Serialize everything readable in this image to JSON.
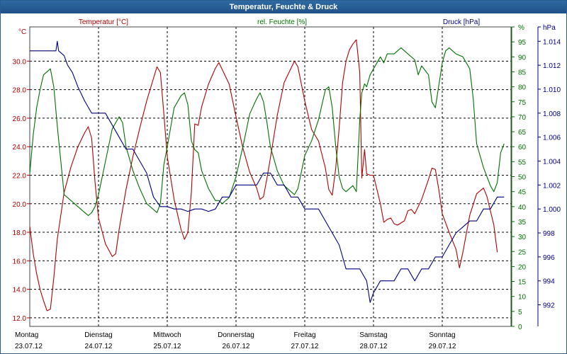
{
  "window": {
    "title": "Temperatur, Feuchte & Druck"
  },
  "chart_data": {
    "type": "line",
    "title": "Temperatur, Feuchte & Druck",
    "grid": true,
    "x_labels": [
      {
        "day": "Montag",
        "date": "23.07.12"
      },
      {
        "day": "Dienstag",
        "date": "24.07.12"
      },
      {
        "day": "Mittwoch",
        "date": "25.07.12"
      },
      {
        "day": "Donnerstag",
        "date": "26.07.12"
      },
      {
        "day": "Freitag",
        "date": "27.07.12"
      },
      {
        "day": "Samstag",
        "date": "28.07.12"
      },
      {
        "day": "Sonntag",
        "date": "29.07.12"
      }
    ],
    "xlim": [
      0,
      7
    ],
    "axes": {
      "temperature": {
        "unit": "°C",
        "ylim": [
          11.4,
          32.4
        ],
        "ticks": [
          "12.0",
          "14.0",
          "16.0",
          "18.0",
          "20.0",
          "22.0",
          "24.0",
          "26.0",
          "28.0",
          "30.0"
        ],
        "tick_values": [
          12,
          14,
          16,
          18,
          20,
          22,
          24,
          26,
          28,
          30
        ],
        "color": "#b00000"
      },
      "humidity": {
        "unit": "%",
        "ylim": [
          0,
          100
        ],
        "ticks": [
          "0",
          "5",
          "10",
          "15",
          "20",
          "25",
          "30",
          "35",
          "40",
          "45",
          "50",
          "55",
          "60",
          "65",
          "70",
          "75",
          "80",
          "85",
          "90",
          "95",
          "%"
        ],
        "tick_values": [
          0,
          5,
          10,
          15,
          20,
          25,
          30,
          35,
          40,
          45,
          50,
          55,
          60,
          65,
          70,
          75,
          80,
          85,
          90,
          95,
          100
        ],
        "color": "#007000"
      },
      "pressure": {
        "unit": "hPa",
        "ylim": [
          990.2,
          1015.2
        ],
        "ticks": [
          "992",
          "994",
          "996",
          "998",
          "1.000",
          "1.002",
          "1.004",
          "1.006",
          "1.008",
          "1.010",
          "1.012",
          "1.014",
          "hPa"
        ],
        "tick_values": [
          992,
          994,
          996,
          998,
          1000,
          1002,
          1004,
          1006,
          1008,
          1010,
          1012,
          1014,
          1015.2
        ],
        "color": "#000080"
      }
    },
    "legend": {
      "temperature": "Temperatur [°C]",
      "humidity": "rel. Feuchte [%]",
      "pressure": "Druck [hPa]"
    },
    "series": [
      {
        "name": "Temperatur [°C]",
        "axis": "temperature",
        "color": "#b00000",
        "points": [
          [
            0.0,
            18.4
          ],
          [
            0.05,
            16.5
          ],
          [
            0.1,
            15.1
          ],
          [
            0.15,
            14.0
          ],
          [
            0.2,
            13.2
          ],
          [
            0.25,
            12.5
          ],
          [
            0.3,
            12.6
          ],
          [
            0.35,
            14.8
          ],
          [
            0.4,
            17.5
          ],
          [
            0.5,
            20.8
          ],
          [
            0.6,
            22.6
          ],
          [
            0.7,
            24.0
          ],
          [
            0.8,
            25.0
          ],
          [
            0.85,
            25.4
          ],
          [
            0.9,
            24.6
          ],
          [
            0.95,
            21.5
          ],
          [
            1.0,
            19.0
          ],
          [
            1.1,
            17.2
          ],
          [
            1.2,
            16.3
          ],
          [
            1.25,
            16.5
          ],
          [
            1.3,
            18.2
          ],
          [
            1.4,
            21.0
          ],
          [
            1.5,
            23.3
          ],
          [
            1.6,
            25.3
          ],
          [
            1.7,
            27.2
          ],
          [
            1.8,
            28.8
          ],
          [
            1.85,
            29.6
          ],
          [
            1.9,
            29.2
          ],
          [
            1.95,
            26.3
          ],
          [
            2.0,
            23.3
          ],
          [
            2.1,
            20.3
          ],
          [
            2.2,
            18.2
          ],
          [
            2.25,
            17.5
          ],
          [
            2.3,
            18.0
          ],
          [
            2.35,
            20.8
          ],
          [
            2.4,
            25.6
          ],
          [
            2.45,
            25.5
          ],
          [
            2.5,
            26.8
          ],
          [
            2.6,
            28.4
          ],
          [
            2.7,
            29.5
          ],
          [
            2.75,
            29.9
          ],
          [
            2.8,
            29.4
          ],
          [
            2.9,
            28.4
          ],
          [
            3.0,
            26.1
          ],
          [
            3.1,
            23.9
          ],
          [
            3.2,
            22.2
          ],
          [
            3.3,
            21.1
          ],
          [
            3.35,
            20.3
          ],
          [
            3.4,
            20.5
          ],
          [
            3.45,
            21.8
          ],
          [
            3.5,
            23.2
          ],
          [
            3.6,
            26.2
          ],
          [
            3.7,
            28.5
          ],
          [
            3.8,
            29.5
          ],
          [
            3.85,
            30.0
          ],
          [
            3.9,
            29.6
          ],
          [
            4.0,
            27.2
          ],
          [
            4.1,
            25.2
          ],
          [
            4.2,
            24.4
          ],
          [
            4.3,
            22.5
          ],
          [
            4.35,
            21.0
          ],
          [
            4.4,
            20.6
          ],
          [
            4.45,
            22.5
          ],
          [
            4.5,
            25.3
          ],
          [
            4.55,
            28.5
          ],
          [
            4.6,
            30.0
          ],
          [
            4.65,
            30.8
          ],
          [
            4.7,
            31.2
          ],
          [
            4.75,
            31.5
          ],
          [
            4.8,
            29.2
          ],
          [
            4.83,
            21.8
          ],
          [
            4.87,
            23.8
          ],
          [
            4.9,
            22.1
          ],
          [
            4.95,
            22.0
          ],
          [
            5.0,
            22.0
          ],
          [
            5.1,
            20.0
          ],
          [
            5.15,
            18.7
          ],
          [
            5.2,
            18.9
          ],
          [
            5.25,
            19.0
          ],
          [
            5.3,
            18.6
          ],
          [
            5.35,
            18.5
          ],
          [
            5.45,
            18.8
          ],
          [
            5.5,
            19.5
          ],
          [
            5.55,
            19.6
          ],
          [
            5.6,
            19.3
          ],
          [
            5.7,
            20.3
          ],
          [
            5.8,
            21.7
          ],
          [
            5.85,
            22.5
          ],
          [
            5.9,
            22.4
          ],
          [
            5.95,
            21.0
          ],
          [
            6.0,
            19.3
          ],
          [
            6.1,
            18.0
          ],
          [
            6.2,
            16.8
          ],
          [
            6.25,
            15.5
          ],
          [
            6.3,
            16.6
          ],
          [
            6.4,
            19.2
          ],
          [
            6.5,
            20.7
          ],
          [
            6.6,
            21.1
          ],
          [
            6.65,
            20.5
          ],
          [
            6.7,
            19.5
          ],
          [
            6.75,
            18.5
          ],
          [
            6.8,
            16.6
          ]
        ]
      },
      {
        "name": "rel. Feuchte [%]",
        "axis": "humidity",
        "color": "#007000",
        "points": [
          [
            0.0,
            51
          ],
          [
            0.05,
            64
          ],
          [
            0.1,
            73
          ],
          [
            0.15,
            79
          ],
          [
            0.2,
            84
          ],
          [
            0.25,
            85
          ],
          [
            0.3,
            86
          ],
          [
            0.35,
            80
          ],
          [
            0.4,
            67
          ],
          [
            0.5,
            44
          ],
          [
            0.6,
            42
          ],
          [
            0.7,
            40
          ],
          [
            0.8,
            38
          ],
          [
            0.85,
            37
          ],
          [
            0.9,
            38
          ],
          [
            0.95,
            40
          ],
          [
            1.0,
            44
          ],
          [
            1.1,
            55
          ],
          [
            1.2,
            66
          ],
          [
            1.3,
            70
          ],
          [
            1.35,
            68
          ],
          [
            1.4,
            60
          ],
          [
            1.5,
            52
          ],
          [
            1.6,
            46
          ],
          [
            1.7,
            41
          ],
          [
            1.8,
            39
          ],
          [
            1.85,
            38
          ],
          [
            1.9,
            41
          ],
          [
            1.95,
            54
          ],
          [
            2.0,
            60
          ],
          [
            2.1,
            73
          ],
          [
            2.2,
            77
          ],
          [
            2.25,
            78
          ],
          [
            2.3,
            74
          ],
          [
            2.35,
            62
          ],
          [
            2.4,
            59
          ],
          [
            2.45,
            58
          ],
          [
            2.5,
            52
          ],
          [
            2.6,
            46
          ],
          [
            2.7,
            42
          ],
          [
            2.75,
            42
          ],
          [
            2.8,
            41
          ],
          [
            2.9,
            43
          ],
          [
            3.0,
            50
          ],
          [
            3.1,
            60
          ],
          [
            3.2,
            71
          ],
          [
            3.3,
            76
          ],
          [
            3.35,
            78
          ],
          [
            3.4,
            75
          ],
          [
            3.45,
            68
          ],
          [
            3.5,
            60
          ],
          [
            3.6,
            52
          ],
          [
            3.7,
            47
          ],
          [
            3.8,
            45
          ],
          [
            3.85,
            44
          ],
          [
            3.9,
            46
          ],
          [
            4.0,
            57
          ],
          [
            4.1,
            62
          ],
          [
            4.2,
            69
          ],
          [
            4.3,
            79
          ],
          [
            4.35,
            80
          ],
          [
            4.4,
            73
          ],
          [
            4.45,
            60
          ],
          [
            4.5,
            50
          ],
          [
            4.55,
            46
          ],
          [
            4.6,
            45
          ],
          [
            4.65,
            46
          ],
          [
            4.7,
            47
          ],
          [
            4.75,
            45
          ],
          [
            4.8,
            69
          ],
          [
            4.83,
            78
          ],
          [
            4.87,
            81
          ],
          [
            4.9,
            80
          ],
          [
            4.95,
            84
          ],
          [
            5.0,
            86
          ],
          [
            5.1,
            90
          ],
          [
            5.15,
            88
          ],
          [
            5.2,
            91
          ],
          [
            5.3,
            91
          ],
          [
            5.4,
            93
          ],
          [
            5.5,
            91
          ],
          [
            5.6,
            89
          ],
          [
            5.65,
            84
          ],
          [
            5.7,
            87
          ],
          [
            5.8,
            84
          ],
          [
            5.85,
            75
          ],
          [
            5.9,
            73
          ],
          [
            6.0,
            88
          ],
          [
            6.05,
            92
          ],
          [
            6.1,
            93
          ],
          [
            6.2,
            91
          ],
          [
            6.3,
            90
          ],
          [
            6.4,
            86
          ],
          [
            6.45,
            76
          ],
          [
            6.5,
            61
          ],
          [
            6.6,
            53
          ],
          [
            6.7,
            47
          ],
          [
            6.75,
            45
          ],
          [
            6.8,
            48
          ],
          [
            6.85,
            58
          ],
          [
            6.9,
            61
          ]
        ]
      },
      {
        "name": "Druck [hPa]",
        "axis": "pressure",
        "color": "#000080",
        "points": [
          [
            0.0,
            1013.2
          ],
          [
            0.15,
            1013.2
          ],
          [
            0.3,
            1013.2
          ],
          [
            0.38,
            1013.2
          ],
          [
            0.4,
            1014.0
          ],
          [
            0.42,
            1013.2
          ],
          [
            0.5,
            1012.8
          ],
          [
            0.55,
            1012.0
          ],
          [
            0.62,
            1011.4
          ],
          [
            0.7,
            1010.2
          ],
          [
            0.8,
            1009.0
          ],
          [
            0.9,
            1008.0
          ],
          [
            1.0,
            1008.0
          ],
          [
            1.1,
            1008.0
          ],
          [
            1.2,
            1007.0
          ],
          [
            1.3,
            1006.0
          ],
          [
            1.4,
            1005.0
          ],
          [
            1.5,
            1005.0
          ],
          [
            1.6,
            1004.0
          ],
          [
            1.7,
            1003.0
          ],
          [
            1.8,
            1001.0
          ],
          [
            1.9,
            1000.2
          ],
          [
            2.0,
            1000.2
          ],
          [
            2.1,
            1000.0
          ],
          [
            2.2,
            1000.0
          ],
          [
            2.3,
            999.8
          ],
          [
            2.4,
            1000.0
          ],
          [
            2.5,
            1000.0
          ],
          [
            2.6,
            999.8
          ],
          [
            2.7,
            1000.0
          ],
          [
            2.8,
            1001.0
          ],
          [
            2.9,
            1001.0
          ],
          [
            3.0,
            1002.0
          ],
          [
            3.1,
            1002.0
          ],
          [
            3.2,
            1002.0
          ],
          [
            3.3,
            1002.0
          ],
          [
            3.4,
            1003.0
          ],
          [
            3.5,
            1003.0
          ],
          [
            3.6,
            1002.0
          ],
          [
            3.7,
            1002.0
          ],
          [
            3.8,
            1001.0
          ],
          [
            3.9,
            1001.0
          ],
          [
            4.0,
            1000.0
          ],
          [
            4.1,
            1000.0
          ],
          [
            4.2,
            1000.0
          ],
          [
            4.3,
            999.0
          ],
          [
            4.4,
            998.0
          ],
          [
            4.5,
            997.0
          ],
          [
            4.55,
            996.0
          ],
          [
            4.6,
            995.0
          ],
          [
            4.7,
            995.0
          ],
          [
            4.8,
            995.0
          ],
          [
            4.9,
            994.0
          ],
          [
            4.95,
            992.2
          ],
          [
            5.0,
            993.0
          ],
          [
            5.1,
            994.0
          ],
          [
            5.2,
            994.0
          ],
          [
            5.3,
            994.0
          ],
          [
            5.4,
            995.0
          ],
          [
            5.5,
            995.0
          ],
          [
            5.6,
            994.0
          ],
          [
            5.7,
            995.0
          ],
          [
            5.8,
            995.0
          ],
          [
            5.9,
            996.0
          ],
          [
            6.0,
            996.0
          ],
          [
            6.1,
            997.0
          ],
          [
            6.2,
            998.0
          ],
          [
            6.3,
            998.5
          ],
          [
            6.4,
            999.0
          ],
          [
            6.5,
            999.0
          ],
          [
            6.6,
            1000.0
          ],
          [
            6.7,
            1000.0
          ],
          [
            6.8,
            1001.0
          ],
          [
            6.9,
            1001.0
          ]
        ]
      }
    ]
  }
}
